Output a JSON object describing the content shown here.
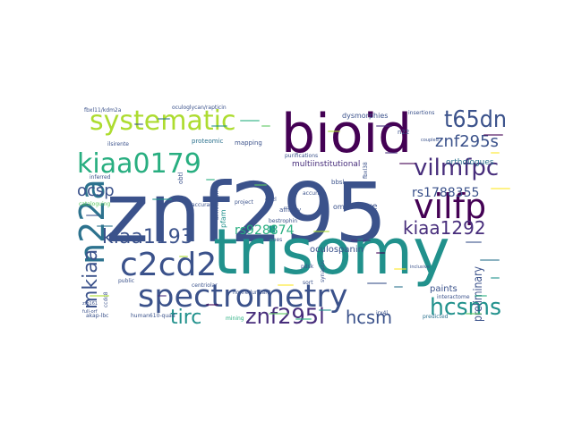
{
  "palette": {
    "dark_purple": "#440154",
    "purple": "#472d7b",
    "indigo": "#3b528b",
    "blue": "#2c728e",
    "teal": "#21918c",
    "green": "#28ae80",
    "lime": "#5ec962",
    "yellow": "#addc30",
    "yellow_light": "#fde725"
  },
  "words": [
    {
      "text": "znf295",
      "color": "indigo"
    },
    {
      "text": "trisomy",
      "color": "teal"
    },
    {
      "text": "bioid",
      "color": "dark_purple"
    },
    {
      "text": "spectrometry",
      "color": "indigo"
    },
    {
      "text": "systematic",
      "color": "yellow"
    },
    {
      "text": "kiaa0179",
      "color": "green"
    },
    {
      "text": "c2cd2",
      "color": "indigo"
    },
    {
      "text": "n22a",
      "color": "blue"
    },
    {
      "text": "vilfp",
      "color": "dark_purple"
    },
    {
      "text": "vilmfpc",
      "color": "purple"
    },
    {
      "text": "t65dn",
      "color": "indigo"
    },
    {
      "text": "hcsms",
      "color": "teal"
    },
    {
      "text": "kiaa1193",
      "color": "indigo"
    },
    {
      "text": "znf295l",
      "color": "purple"
    },
    {
      "text": "mkiaa",
      "color": "indigo"
    },
    {
      "text": "tirc",
      "color": "teal"
    },
    {
      "text": "hcsm",
      "color": "indigo"
    },
    {
      "text": "kiaa1292",
      "color": "purple"
    },
    {
      "text": "znf295s",
      "color": "indigo"
    },
    {
      "text": "rs1788355",
      "color": "indigo"
    },
    {
      "text": "ocsp",
      "color": "indigo"
    },
    {
      "text": "rs928874",
      "color": "green"
    },
    {
      "text": "oculospanin",
      "color": "indigo"
    },
    {
      "text": "preliminary",
      "color": "indigo"
    },
    {
      "text": "multiinstitutional",
      "color": "purple"
    },
    {
      "text": "orthologues",
      "color": "blue"
    },
    {
      "text": "paints",
      "color": "indigo"
    },
    {
      "text": "kxe",
      "color": "indigo"
    },
    {
      "text": "dysmorphies",
      "color": "indigo"
    },
    {
      "text": "proteomic",
      "color": "blue"
    },
    {
      "text": "n22",
      "color": "indigo"
    },
    {
      "text": "mapping",
      "color": "indigo"
    },
    {
      "text": "purifications",
      "color": "indigo"
    },
    {
      "text": "bestrophin",
      "color": "indigo"
    },
    {
      "text": "clones",
      "color": "indigo"
    },
    {
      "text": "interactome",
      "color": "indigo"
    },
    {
      "text": "predicted",
      "color": "blue"
    },
    {
      "text": "fbxl11/kdm2a",
      "color": "indigo"
    },
    {
      "text": "oculoglycan/rapticin",
      "color": "indigo"
    },
    {
      "text": "ilsirente",
      "color": "indigo"
    },
    {
      "text": "inferred",
      "color": "indigo"
    },
    {
      "text": "cataloguing",
      "color": "lime"
    },
    {
      "text": "accuracy",
      "color": "indigo"
    },
    {
      "text": "project",
      "color": "indigo"
    },
    {
      "text": "centriolar",
      "color": "indigo"
    },
    {
      "text": "nonredundant",
      "color": "indigo"
    },
    {
      "text": "public",
      "color": "indigo"
    },
    {
      "text": "mining",
      "color": "green"
    },
    {
      "text": "human610-quad",
      "color": "indigo"
    },
    {
      "text": "akap-lbc",
      "color": "indigo"
    },
    {
      "text": "zfp161",
      "color": "indigo"
    },
    {
      "text": "full-orf",
      "color": "indigo"
    },
    {
      "text": "ccdc8",
      "color": "indigo"
    },
    {
      "text": "affinity",
      "color": "indigo"
    },
    {
      "text": "oml",
      "color": "indigo"
    },
    {
      "text": "pfam",
      "color": "teal"
    },
    {
      "text": "grizl",
      "color": "indigo"
    },
    {
      "text": "annotation",
      "color": "indigo"
    },
    {
      "text": "obtl",
      "color": "indigo"
    },
    {
      "text": "bbsl",
      "color": "indigo"
    },
    {
      "text": "fbxl38",
      "color": "indigo"
    },
    {
      "text": "pdsk",
      "color": "indigo"
    },
    {
      "text": "sort",
      "color": "indigo"
    },
    {
      "text": "synaptic",
      "color": "indigo"
    },
    {
      "text": "irx4l",
      "color": "indigo"
    },
    {
      "text": "insertions",
      "color": "indigo"
    },
    {
      "text": "coupled",
      "color": "indigo"
    },
    {
      "text": "accurate",
      "color": "indigo"
    },
    {
      "text": "inclusive",
      "color": "indigo"
    }
  ]
}
